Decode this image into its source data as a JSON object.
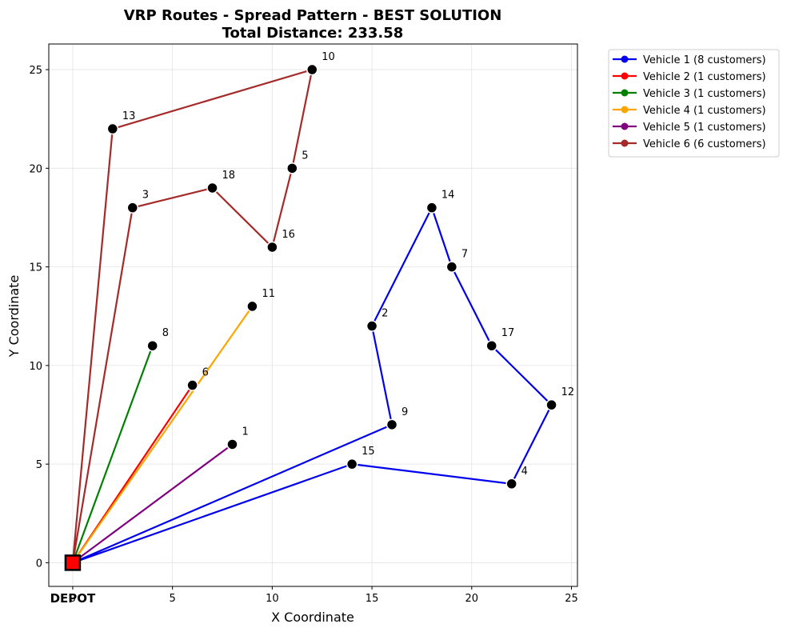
{
  "chart_data": {
    "type": "line",
    "title_line1": "VRP Routes - Spread Pattern - BEST SOLUTION",
    "title_line2": "Total Distance: 233.58",
    "xlabel": "X Coordinate",
    "ylabel": "Y Coordinate",
    "xlim": [
      -1.2,
      25.3
    ],
    "ylim": [
      -1.2,
      26.3
    ],
    "xticks": [
      0,
      5,
      10,
      15,
      20,
      25
    ],
    "yticks": [
      0,
      5,
      10,
      15,
      20,
      25
    ],
    "grid": true,
    "legend_position": "outside-top-right",
    "depot": {
      "x": 0,
      "y": 0,
      "label": "DEPOT",
      "color": "#ff0000"
    },
    "customers": [
      {
        "id": "1",
        "x": 8,
        "y": 6
      },
      {
        "id": "2",
        "x": 15,
        "y": 12
      },
      {
        "id": "3",
        "x": 3,
        "y": 18
      },
      {
        "id": "4",
        "x": 22,
        "y": 4
      },
      {
        "id": "5",
        "x": 11,
        "y": 20
      },
      {
        "id": "6",
        "x": 6,
        "y": 9
      },
      {
        "id": "7",
        "x": 19,
        "y": 15
      },
      {
        "id": "8",
        "x": 4,
        "y": 11
      },
      {
        "id": "9",
        "x": 16,
        "y": 7
      },
      {
        "id": "10",
        "x": 12,
        "y": 25
      },
      {
        "id": "11",
        "x": 9,
        "y": 13
      },
      {
        "id": "12",
        "x": 24,
        "y": 8
      },
      {
        "id": "13",
        "x": 2,
        "y": 22
      },
      {
        "id": "14",
        "x": 18,
        "y": 18
      },
      {
        "id": "15",
        "x": 14,
        "y": 5
      },
      {
        "id": "16",
        "x": 10,
        "y": 16
      },
      {
        "id": "17",
        "x": 21,
        "y": 11
      },
      {
        "id": "18",
        "x": 7,
        "y": 19
      }
    ],
    "series": [
      {
        "name": "Vehicle 1 (8 customers)",
        "color": "#0000ee",
        "route": [
          "9",
          "2",
          "14",
          "7",
          "17",
          "12",
          "4",
          "15"
        ]
      },
      {
        "name": "Vehicle 2 (1 customers)",
        "color": "#ff0000",
        "route": [
          "6"
        ]
      },
      {
        "name": "Vehicle 3 (1 customers)",
        "color": "#008000",
        "route": [
          "8"
        ]
      },
      {
        "name": "Vehicle 4 (1 customers)",
        "color": "#ffa500",
        "route": [
          "11"
        ]
      },
      {
        "name": "Vehicle 5 (1 customers)",
        "color": "#800080",
        "route": [
          "1"
        ]
      },
      {
        "name": "Vehicle 6 (6 customers)",
        "color": "#a52a2a",
        "route": [
          "3",
          "18",
          "16",
          "5",
          "10",
          "13"
        ]
      }
    ]
  }
}
